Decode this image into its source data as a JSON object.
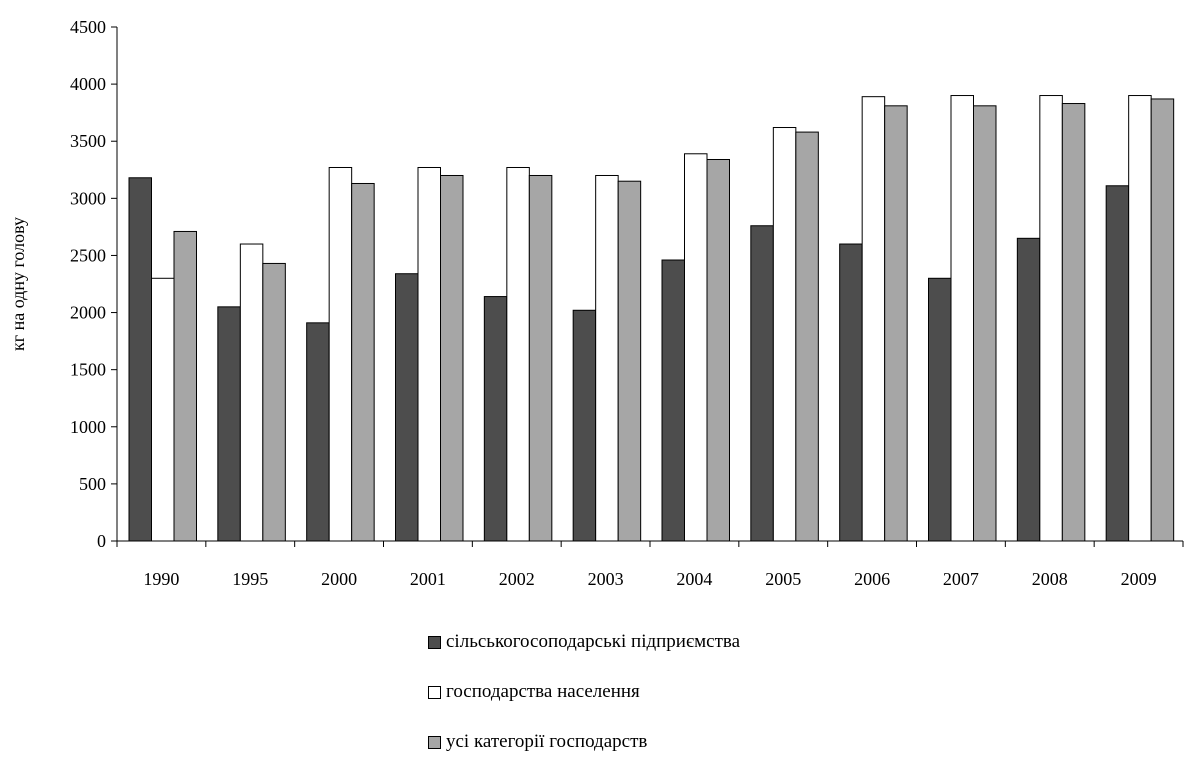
{
  "chart_data": {
    "type": "bar",
    "categories": [
      "1990",
      "1995",
      "2000",
      "2001",
      "2002",
      "2003",
      "2004",
      "2005",
      "2006",
      "2007",
      "2008",
      "2009"
    ],
    "series": [
      {
        "name": "сільськогосоподарські підприємства",
        "color": "#4d4d4d",
        "values": [
          3180,
          2050,
          1910,
          2340,
          2140,
          2020,
          2460,
          2760,
          2600,
          2300,
          2650,
          3110
        ]
      },
      {
        "name": "господарства населення",
        "color": "#ffffff",
        "values": [
          2300,
          2600,
          3270,
          3270,
          3270,
          3200,
          3390,
          3620,
          3890,
          3900,
          3900,
          3900
        ]
      },
      {
        "name": "усі категорії господарств",
        "color": "#a6a6a6",
        "values": [
          2710,
          2430,
          3130,
          3200,
          3200,
          3150,
          3340,
          3580,
          3810,
          3810,
          3830,
          3870
        ]
      }
    ],
    "yticks": [
      "0",
      "500",
      "1000",
      "1500",
      "2000",
      "2500",
      "3000",
      "3500",
      "4000",
      "4500"
    ],
    "ylabel": "кг на одну голову",
    "xlabel": "",
    "ylim": [
      0,
      4500
    ],
    "legend_position": "bottom",
    "grid": false
  }
}
